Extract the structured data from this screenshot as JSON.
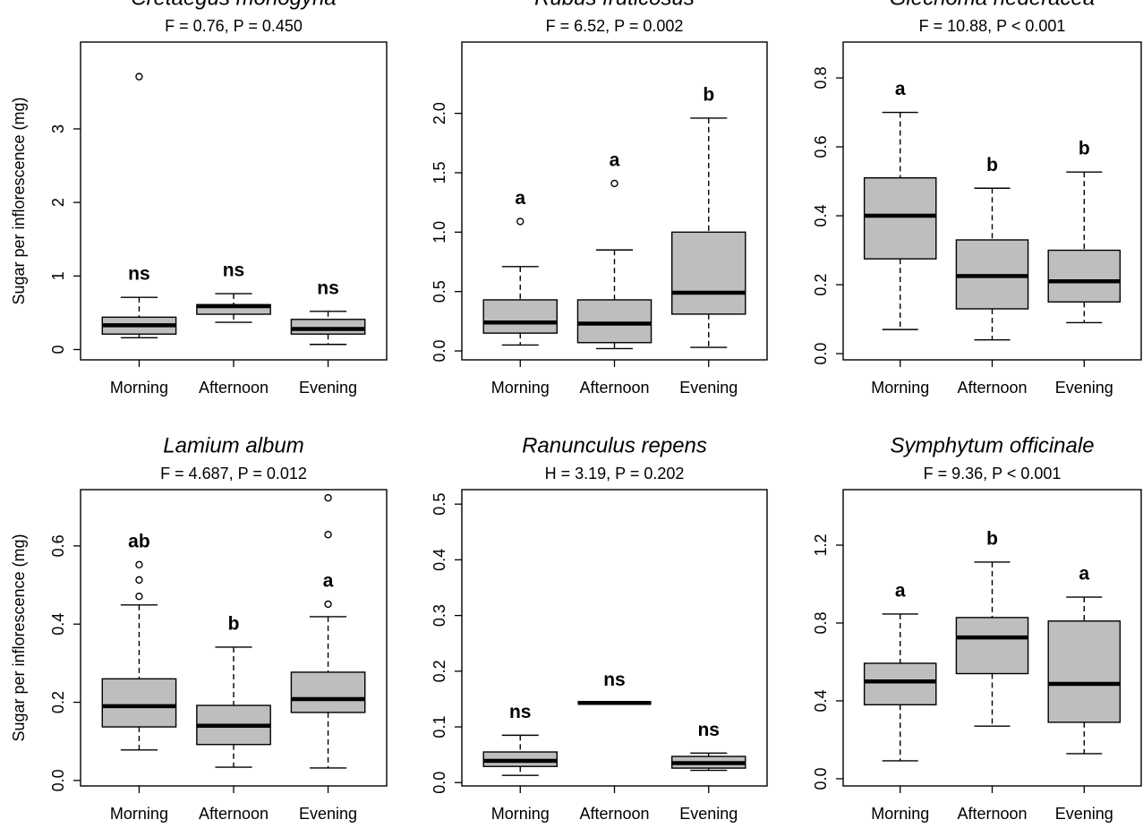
{
  "chart_data": [
    {
      "type": "box",
      "title": "Cretaegus monogyna",
      "subtitle": "F = 0.76, P = 0.450",
      "ylabel": "Sugar per inflorescence (mg)",
      "color": "#bebebe",
      "categories": [
        "Morning",
        "Afternoon",
        "Evening"
      ],
      "boxes": [
        {
          "whisker_low": 0.16,
          "q1": 0.21,
          "median": 0.33,
          "q3": 0.44,
          "whisker_high": 0.71,
          "outliers": [
            3.71
          ],
          "label": "ns"
        },
        {
          "whisker_low": 0.37,
          "q1": 0.48,
          "median": 0.59,
          "q3": 0.61,
          "whisker_high": 0.76,
          "outliers": [],
          "label": "ns"
        },
        {
          "whisker_low": 0.07,
          "q1": 0.21,
          "median": 0.28,
          "q3": 0.41,
          "whisker_high": 0.52,
          "outliers": [],
          "label": "ns"
        }
      ],
      "ylim": [
        -0.14,
        4.18
      ],
      "yticks": [
        0,
        1,
        2,
        3
      ]
    },
    {
      "type": "box",
      "title": "Rubus fruticosus",
      "subtitle": "F = 6.52, P = 0.002",
      "color": "#bebebe",
      "categories": [
        "Morning",
        "Afternoon",
        "Evening"
      ],
      "boxes": [
        {
          "whisker_low": 0.05,
          "q1": 0.15,
          "median": 0.24,
          "q3": 0.43,
          "whisker_high": 0.71,
          "outliers": [
            1.09
          ],
          "label": "a"
        },
        {
          "whisker_low": 0.02,
          "q1": 0.07,
          "median": 0.23,
          "q3": 0.43,
          "whisker_high": 0.85,
          "outliers": [
            1.41
          ],
          "label": "a"
        },
        {
          "whisker_low": 0.03,
          "q1": 0.31,
          "median": 0.49,
          "q3": 1.0,
          "whisker_high": 1.96,
          "outliers": [],
          "label": "b"
        }
      ],
      "ylim": [
        -0.075,
        2.6
      ],
      "yticks": [
        {
          "value": 0,
          "label": "0.0"
        },
        0.5,
        {
          "value": 1,
          "label": "1.0"
        },
        1.5,
        {
          "value": 2,
          "label": "2.0"
        }
      ]
    },
    {
      "type": "box",
      "title": "Glechoma hederacea",
      "subtitle": "F = 10.88, P < 0.001",
      "color": "#bebebe",
      "categories": [
        "Morning",
        "Afternoon",
        "Evening"
      ],
      "boxes": [
        {
          "whisker_low": 0.07,
          "q1": 0.275,
          "median": 0.4,
          "q3": 0.51,
          "whisker_high": 0.7,
          "outliers": [],
          "label": "a"
        },
        {
          "whisker_low": 0.04,
          "q1": 0.13,
          "median": 0.225,
          "q3": 0.33,
          "whisker_high": 0.48,
          "outliers": [],
          "label": "b"
        },
        {
          "whisker_low": 0.09,
          "q1": 0.15,
          "median": 0.21,
          "q3": 0.3,
          "whisker_high": 0.527,
          "outliers": [],
          "label": "b"
        }
      ],
      "ylim": [
        -0.018,
        0.904
      ],
      "yticks": [
        {
          "value": 0,
          "label": "0.0"
        },
        0.2,
        0.4,
        0.6,
        0.8
      ]
    },
    {
      "type": "box",
      "title": "Lamium album",
      "subtitle": "F = 4.687, P = 0.012",
      "ylabel": "Sugar per inflorescence (mg)",
      "color": "#bebebe",
      "categories": [
        "Morning",
        "Afternoon",
        "Evening"
      ],
      "boxes": [
        {
          "whisker_low": 0.078,
          "q1": 0.137,
          "median": 0.19,
          "q3": 0.26,
          "whisker_high": 0.449,
          "outliers": [
            0.471,
            0.513,
            0.552
          ],
          "label": "ab"
        },
        {
          "whisker_low": 0.034,
          "q1": 0.092,
          "median": 0.14,
          "q3": 0.192,
          "whisker_high": 0.341,
          "outliers": [],
          "label": "b"
        },
        {
          "whisker_low": 0.032,
          "q1": 0.174,
          "median": 0.208,
          "q3": 0.277,
          "whisker_high": 0.419,
          "outliers": [
            0.451,
            0.629,
            0.723
          ],
          "label": "a"
        }
      ],
      "ylim": [
        -0.014,
        0.744
      ],
      "yticks": [
        {
          "value": 0,
          "label": "0.0"
        },
        0.2,
        0.4,
        0.6
      ]
    },
    {
      "type": "box",
      "title": "Ranunculus repens",
      "subtitle": "H = 3.19, P = 0.202",
      "color": "#bebebe",
      "categories": [
        "Morning",
        "Afternoon",
        "Evening"
      ],
      "boxes": [
        {
          "whisker_low": 0.013,
          "q1": 0.029,
          "median": 0.039,
          "q3": 0.055,
          "whisker_high": 0.085,
          "outliers": [],
          "label": "ns"
        },
        {
          "whisker_low": 0.143,
          "q1": 0.143,
          "median": 0.143,
          "q3": 0.143,
          "whisker_high": 0.143,
          "outliers": [],
          "label": "ns"
        },
        {
          "whisker_low": 0.022,
          "q1": 0.026,
          "median": 0.035,
          "q3": 0.047,
          "whisker_high": 0.053,
          "outliers": [],
          "label": "ns"
        }
      ],
      "ylim": [
        -0.006,
        0.526
      ],
      "yticks": [
        {
          "value": 0,
          "label": "0.0"
        },
        0.1,
        0.2,
        0.3,
        0.4,
        0.5
      ]
    },
    {
      "type": "box",
      "title": "Symphytum officinale",
      "subtitle": "F = 9.36, P < 0.001",
      "color": "#bebebe",
      "categories": [
        "Morning",
        "Afternoon",
        "Evening"
      ],
      "boxes": [
        {
          "whisker_low": 0.092,
          "q1": 0.38,
          "median": 0.5,
          "q3": 0.593,
          "whisker_high": 0.846,
          "outliers": [],
          "label": "a"
        },
        {
          "whisker_low": 0.27,
          "q1": 0.54,
          "median": 0.726,
          "q3": 0.828,
          "whisker_high": 1.113,
          "outliers": [],
          "label": "b"
        },
        {
          "whisker_low": 0.129,
          "q1": 0.29,
          "median": 0.487,
          "q3": 0.81,
          "whisker_high": 0.933,
          "outliers": [],
          "label": "a"
        }
      ],
      "ylim": [
        -0.037,
        1.485
      ],
      "yticks": [
        {
          "value": 0,
          "label": "0.0"
        },
        0.4,
        0.8,
        1.2
      ]
    }
  ]
}
